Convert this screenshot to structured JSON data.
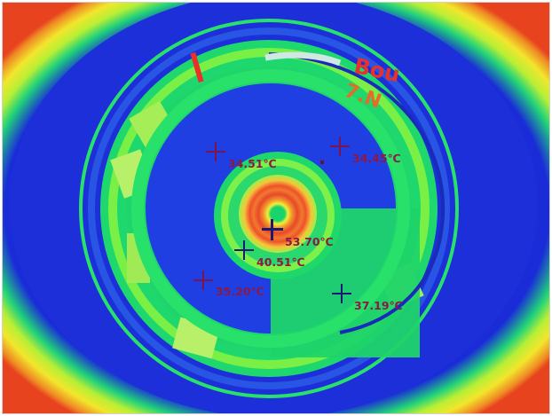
{
  "image": {
    "type": "thermal camera view",
    "marker_color": "#7a1550",
    "label_color": "#8a1a45",
    "hotspot_marker_color": "#1a1a70",
    "palette": [
      "#1a2ad6",
      "#2b55e6",
      "#18e06a",
      "#8ff03a",
      "#f3ef2b",
      "#f19a22",
      "#e83a1f"
    ]
  },
  "measurements": [
    {
      "id": "p1",
      "label": "34.51℃"
    },
    {
      "id": "p2",
      "label": "34.45℃"
    },
    {
      "id": "p3",
      "label": "53.70℃"
    },
    {
      "id": "p4",
      "label": "40.51℃"
    },
    {
      "id": "p5",
      "label": "35.20℃"
    },
    {
      "id": "p6",
      "label": "37.19℃"
    }
  ]
}
